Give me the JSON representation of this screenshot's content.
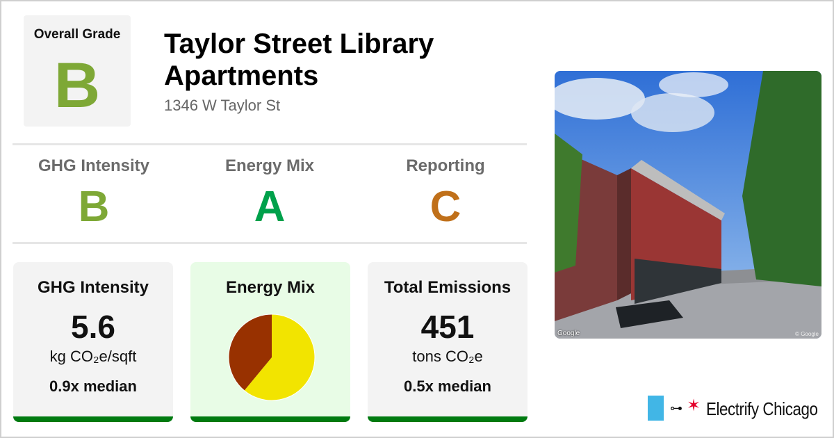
{
  "colors": {
    "grade_a": "#00a14b",
    "grade_b": "#7ea836",
    "grade_c": "#c0701a",
    "accent_bar": "#007a10",
    "pie_primary": "#f2e400",
    "pie_secondary": "#983100",
    "brand_flag": "#41b6e6",
    "brand_star": "#e4002b"
  },
  "overall": {
    "label": "Overall Grade",
    "grade": "B",
    "grade_color": "#7ea836"
  },
  "building": {
    "title": "Taylor Street Library Apartments",
    "address": "1346 W Taylor St"
  },
  "grades": [
    {
      "label": "GHG Intensity",
      "grade": "B",
      "color": "#7ea836"
    },
    {
      "label": "Energy Mix",
      "grade": "A",
      "color": "#00a14b"
    },
    {
      "label": "Reporting",
      "grade": "C",
      "color": "#c0701a"
    }
  ],
  "cards": {
    "ghg": {
      "title": "GHG Intensity",
      "value": "5.6",
      "unit": "kg CO₂e/sqft",
      "median": "0.9x median"
    },
    "energy": {
      "title": "Energy Mix"
    },
    "emissions": {
      "title": "Total Emissions",
      "value": "451",
      "unit": "tons CO₂e",
      "median": "0.5x median"
    }
  },
  "chart_data": {
    "type": "pie",
    "title": "",
    "slices": [
      {
        "value": 61,
        "color": "#f2e400"
      },
      {
        "value": 39,
        "color": "#983100"
      }
    ]
  },
  "photo": {
    "credit": "Google",
    "copyright": "© Google"
  },
  "brand": {
    "name": "Electrify Chicago",
    "plug_icon": "plug-icon",
    "star_icon": "star-icon"
  }
}
